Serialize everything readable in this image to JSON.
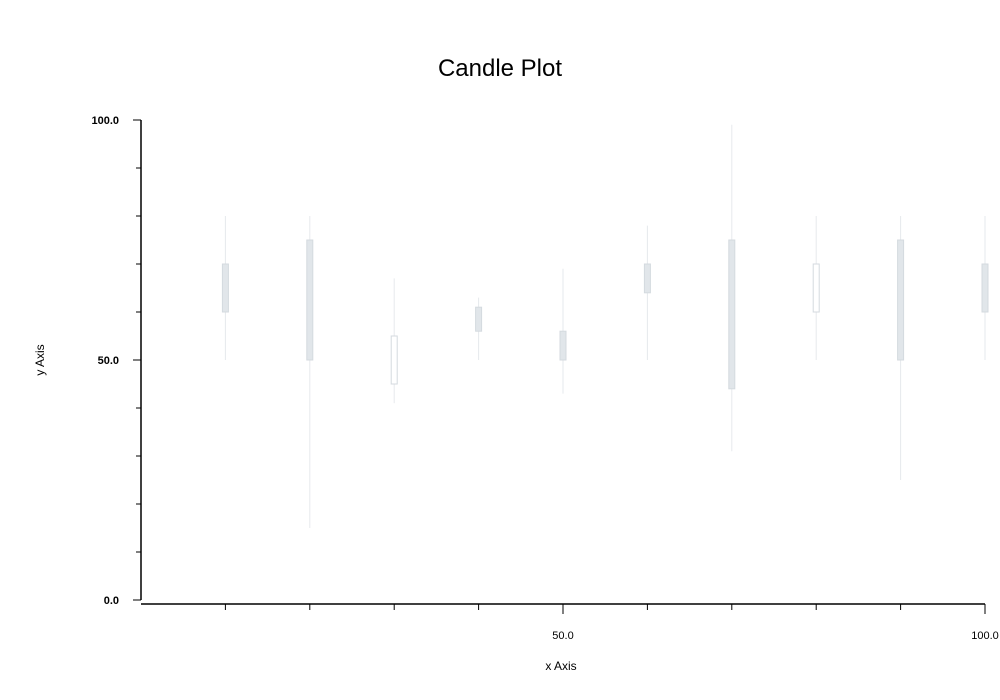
{
  "chart_data": {
    "type": "candlestick",
    "title": "Candle Plot",
    "xlabel": "x Axis",
    "ylabel": "y Axis",
    "xlim": [
      0,
      100
    ],
    "ylim": [
      0,
      100
    ],
    "x_tick_labels": [
      {
        "value": 50,
        "label": "50.0"
      },
      {
        "value": 100,
        "label": "100.0"
      }
    ],
    "y_tick_labels": [
      {
        "value": 0,
        "label": "0.0"
      },
      {
        "value": 50,
        "label": "50.0"
      },
      {
        "value": 100,
        "label": "100.0"
      }
    ],
    "x_minor_ticks": [
      10,
      20,
      30,
      40,
      60,
      70,
      80,
      90
    ],
    "y_minor_ticks": [
      10,
      20,
      30,
      40,
      60,
      70,
      80,
      90
    ],
    "grid": false,
    "colors": {
      "up_body": "#ffffff",
      "down_body": "#e1e6ea",
      "edge": "#d4dadf",
      "wick": "#e6e9ec"
    },
    "candles": [
      {
        "x": 10,
        "open": 70,
        "high": 80,
        "low": 50,
        "close": 60
      },
      {
        "x": 20,
        "open": 75,
        "high": 80,
        "low": 15,
        "close": 50
      },
      {
        "x": 30,
        "open": 45,
        "high": 67,
        "low": 41,
        "close": 55
      },
      {
        "x": 40,
        "open": 61,
        "high": 63,
        "low": 50,
        "close": 56
      },
      {
        "x": 50,
        "open": 56,
        "high": 69,
        "low": 43,
        "close": 50
      },
      {
        "x": 60,
        "open": 70,
        "high": 78,
        "low": 50,
        "close": 64
      },
      {
        "x": 70,
        "open": 75,
        "high": 99,
        "low": 31,
        "close": 44
      },
      {
        "x": 80,
        "open": 60,
        "high": 80,
        "low": 50,
        "close": 70
      },
      {
        "x": 90,
        "open": 75,
        "high": 80,
        "low": 25,
        "close": 50
      },
      {
        "x": 100,
        "open": 70,
        "high": 80,
        "low": 50,
        "close": 60
      }
    ]
  }
}
